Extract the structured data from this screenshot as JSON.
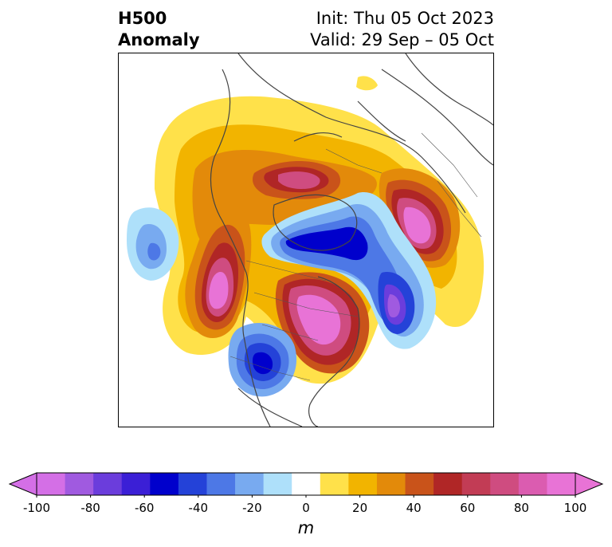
{
  "title": {
    "line1": "H500",
    "line2": "Anomaly"
  },
  "init_text": "Init: Thu 05 Oct 2023",
  "valid_text": "Valid: 29 Sep – 05 Oct",
  "colorbar": {
    "unit": "m",
    "levels": [
      -100,
      -90,
      -80,
      -70,
      -60,
      -50,
      -40,
      -30,
      -20,
      -10,
      10,
      20,
      30,
      40,
      50,
      60,
      70,
      80,
      90,
      100
    ],
    "colors": [
      "#d46fe6",
      "#a05ae0",
      "#6b3ddc",
      "#3b1fd6",
      "#0000cc",
      "#2442d8",
      "#4d78e6",
      "#78aaf0",
      "#aee0fa",
      "#ffffff",
      "#ffe14a",
      "#f2b400",
      "#e38a0a",
      "#c9531a",
      "#b02626",
      "#c23c55",
      "#cf4c80",
      "#db5cb0",
      "#e873d6"
    ],
    "ticks": [
      -100,
      -80,
      -60,
      -40,
      -20,
      0,
      20,
      40,
      60,
      80,
      100
    ]
  }
}
